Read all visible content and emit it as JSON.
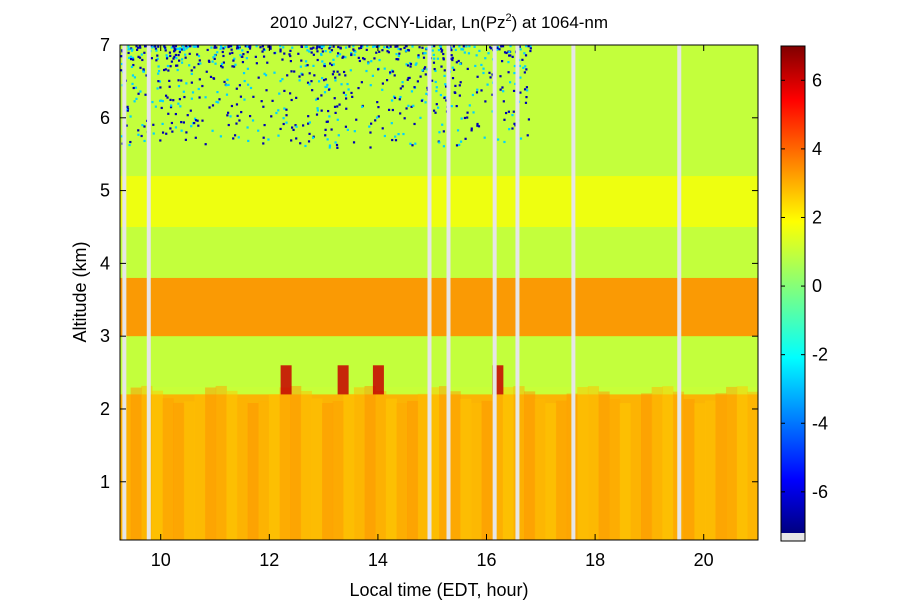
{
  "chart_data": {
    "type": "heatmap",
    "title_prefix": "2010 Jul27, CCNY-Lidar, Ln(Pz",
    "title_sup": "2",
    "title_suffix": ") at 1064-nm",
    "xlabel": "Local time (EDT, hour)",
    "ylabel": "Altitude (km)",
    "xlim": [
      9.25,
      21.0
    ],
    "ylim": [
      0.2,
      7.0
    ],
    "x_ticks": [
      10,
      12,
      14,
      16,
      18,
      20
    ],
    "y_ticks": [
      1,
      2,
      3,
      4,
      5,
      6,
      7
    ],
    "colorbar": {
      "range": [
        -7.2,
        7.0
      ],
      "ticks": [
        6,
        4,
        2,
        0,
        -2,
        -4,
        -6
      ],
      "colormap": "jet"
    },
    "data_gaps_hours": [
      9.33,
      9.78,
      14.95,
      15.3,
      16.15,
      16.57,
      17.6,
      19.55
    ],
    "layers": [
      {
        "name": "boundary-layer",
        "altitude_km": [
          0.2,
          2.2
        ],
        "value": 2.8
      },
      {
        "name": "aloft-aerosol-layer",
        "altitude_km": [
          3.0,
          3.8
        ],
        "value": 3.2
      },
      {
        "name": "elevated-layer",
        "altitude_km": [
          4.5,
          5.2
        ],
        "value": 1.5
      },
      {
        "name": "free-troposphere",
        "altitude_km": [
          2.3,
          7.0
        ],
        "value": 0.8
      },
      {
        "name": "cloud-patches",
        "altitude_km": [
          2.2,
          2.6
        ],
        "value": 6.0,
        "times_hours": [
          12.3,
          13.35,
          14.0,
          16.2
        ]
      }
    ],
    "noise_region_upper": {
      "altitude_km": [
        5.6,
        7.0
      ],
      "time_hours": [
        9.25,
        16.8
      ],
      "value": -6.5
    }
  }
}
